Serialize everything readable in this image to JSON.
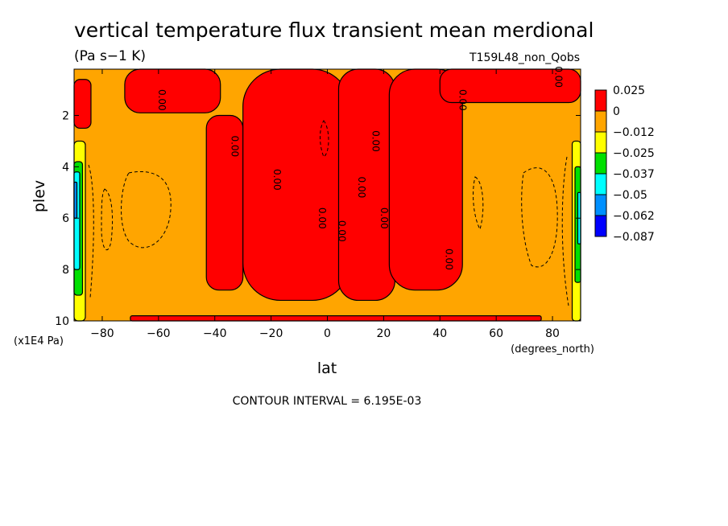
{
  "chart_data": {
    "type": "heatmap",
    "title": "vertical temperature flux transient mean merdional",
    "units": "(Pa s−1 K)",
    "dataset": "T159L48_non_Qobs",
    "xlabel": "lat",
    "ylabel": "plev",
    "x_units": "(degrees_north)",
    "y_units": "(x1E4 Pa)",
    "xlim": [
      -90,
      90
    ],
    "ylim": [
      10,
      0.2
    ],
    "x_ticks": [
      -80,
      -60,
      -40,
      -20,
      0,
      20,
      40,
      60,
      80
    ],
    "x_tick_labels": [
      "−80",
      "−60",
      "−40",
      "−20",
      "0",
      "20",
      "40",
      "60",
      "80"
    ],
    "y_ticks": [
      2,
      4,
      6,
      8,
      10
    ],
    "y_tick_labels": [
      "2",
      "4",
      "6",
      "8",
      "10"
    ],
    "contour_interval_label": "CONTOUR INTERVAL = 6.195E-03",
    "contour_label": "0.00",
    "colorbar": {
      "labels": [
        "0.025",
        "0",
        "−0.012",
        "−0.025",
        "−0.037",
        "−0.05",
        "−0.062",
        "−0.087"
      ],
      "colors": [
        "#ff0000",
        "#ffa500",
        "#ffff00",
        "#00e000",
        "#00ffff",
        "#0090ff",
        "#0000ff"
      ]
    },
    "regions": [
      {
        "fill": "#ff0000",
        "label": "0 to 0.025",
        "lat_range": [
          -90,
          -84
        ],
        "plev_range": [
          0.6,
          2.5
        ]
      },
      {
        "fill": "#ff0000",
        "label": "0 to 0.025",
        "lat_range": [
          -72,
          -38
        ],
        "plev_range": [
          0.2,
          1.9
        ]
      },
      {
        "fill": "#ff0000",
        "label": "0 to 0.025",
        "lat_range": [
          -43,
          -30
        ],
        "plev_range": [
          2.0,
          8.8
        ]
      },
      {
        "fill": "#ff0000",
        "label": "0 to 0.025",
        "lat_range": [
          -30,
          8
        ],
        "plev_range": [
          0.2,
          9.2
        ]
      },
      {
        "fill": "#ff0000",
        "label": "0 to 0.025",
        "lat_range": [
          4,
          24
        ],
        "plev_range": [
          0.2,
          9.2
        ]
      },
      {
        "fill": "#ff0000",
        "label": "0 to 0.025",
        "lat_range": [
          22,
          48
        ],
        "plev_range": [
          0.2,
          8.8
        ]
      },
      {
        "fill": "#ff0000",
        "label": "0 to 0.025",
        "lat_range": [
          40,
          90
        ],
        "plev_range": [
          0.2,
          1.5
        ]
      },
      {
        "fill": "#ff0000",
        "label": "0 to 0.025",
        "lat_range": [
          -70,
          76
        ],
        "plev_range": [
          9.8,
          10
        ]
      },
      {
        "fill": "#ffff00",
        "label": "−0.025 to −0.012",
        "lat_range": [
          -90,
          -86
        ],
        "plev_range": [
          3.0,
          10
        ]
      },
      {
        "fill": "#00e000",
        "label": "−0.037 to −0.025",
        "lat_range": [
          -90,
          -87
        ],
        "plev_range": [
          3.8,
          9.0
        ]
      },
      {
        "fill": "#00ffff",
        "label": "−0.05 to −0.037",
        "lat_range": [
          -90,
          -88
        ],
        "plev_range": [
          4.2,
          8.0
        ]
      },
      {
        "fill": "#0090ff",
        "label": "−0.062 to −0.05",
        "lat_range": [
          -90,
          -89
        ],
        "plev_range": [
          4.6,
          6.0
        ]
      },
      {
        "fill": "#ffff00",
        "label": "−0.025 to −0.012",
        "lat_range": [
          87,
          90
        ],
        "plev_range": [
          3.0,
          10
        ]
      },
      {
        "fill": "#00e000",
        "label": "−0.037 to −0.025",
        "lat_range": [
          88,
          90
        ],
        "plev_range": [
          4.0,
          8.5
        ]
      },
      {
        "fill": "#00ffff",
        "label": "−0.05 to −0.037",
        "lat_range": [
          89,
          90
        ],
        "plev_range": [
          5.0,
          7.0
        ]
      }
    ],
    "grid": false
  }
}
